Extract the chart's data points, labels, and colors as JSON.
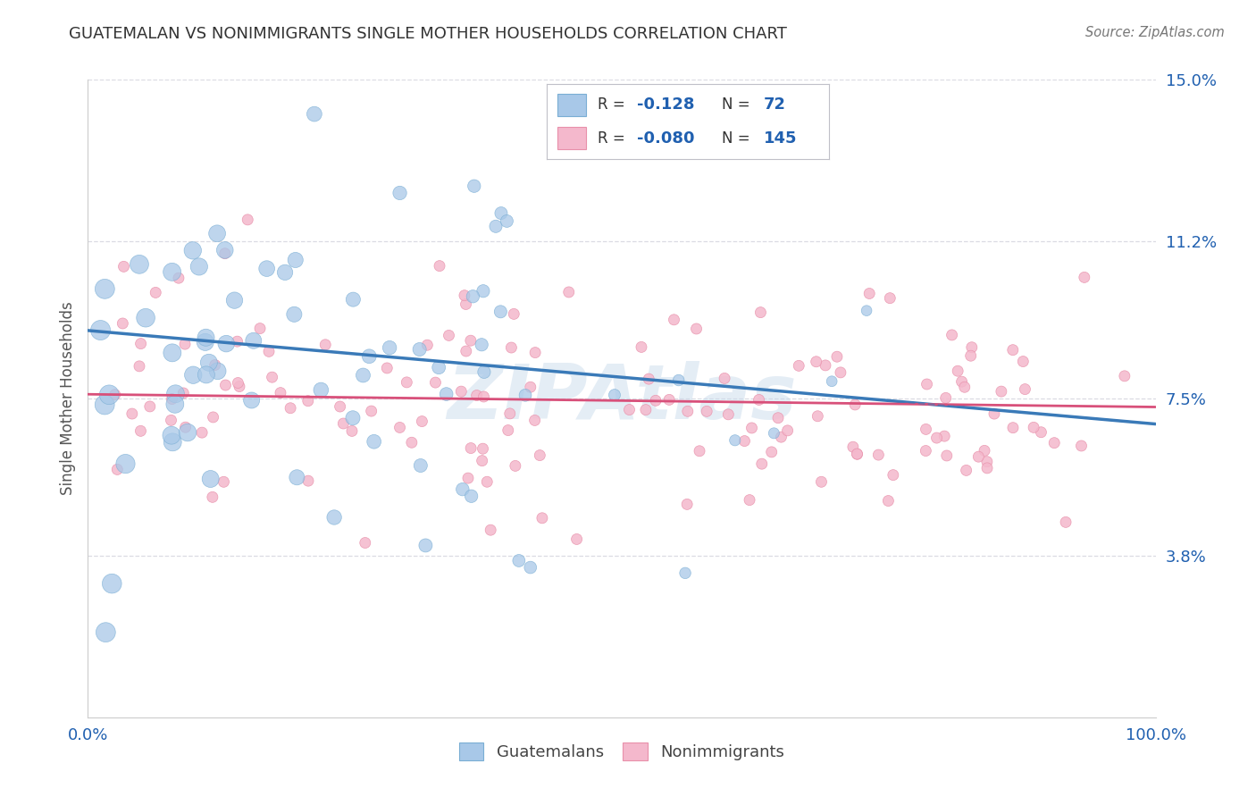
{
  "title": "GUATEMALAN VS NONIMMIGRANTS SINGLE MOTHER HOUSEHOLDS CORRELATION CHART",
  "source": "Source: ZipAtlas.com",
  "ylabel": "Single Mother Households",
  "xlim": [
    0,
    1
  ],
  "ylim": [
    0,
    0.15
  ],
  "ytick_vals": [
    0.038,
    0.075,
    0.112,
    0.15
  ],
  "ytick_labels": [
    "3.8%",
    "7.5%",
    "11.2%",
    "15.0%"
  ],
  "xtick_vals": [
    0.0,
    0.25,
    0.5,
    0.75,
    1.0
  ],
  "xtick_labels": [
    "0.0%",
    "",
    "",
    "",
    "100.0%"
  ],
  "blue_fill": "#a8c8e8",
  "blue_edge": "#7aaed4",
  "pink_fill": "#f4b8cc",
  "pink_edge": "#e890aa",
  "blue_line_color": "#3a7ab8",
  "pink_line_color": "#d8507a",
  "blue_trend_y0": 0.091,
  "blue_trend_y1": 0.069,
  "pink_trend_y0": 0.076,
  "pink_trend_y1": 0.073,
  "watermark": "ZIPAtlas",
  "background_color": "#ffffff",
  "grid_color": "#d8d8e0",
  "axis_color": "#2060b0",
  "title_color": "#333333",
  "N_blue": 72,
  "N_pink": 145,
  "legend_r1_val": "-0.128",
  "legend_n1_val": "72",
  "legend_r2_val": "-0.080",
  "legend_n2_val": "145"
}
